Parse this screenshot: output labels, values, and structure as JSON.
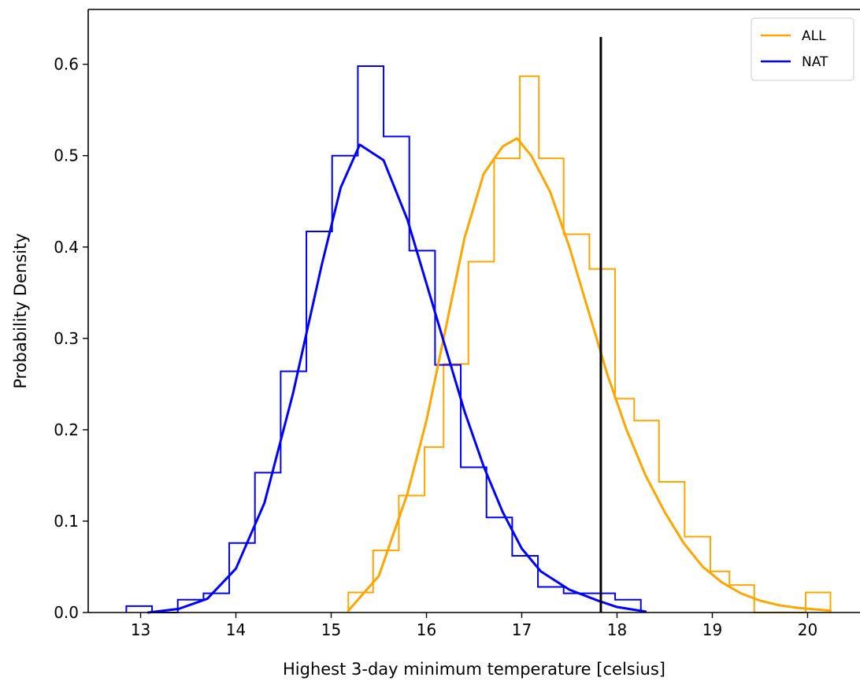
{
  "chart_data": {
    "type": "histogram",
    "title": "",
    "xlabel": "Highest 3-day minimum temperature [celsius]",
    "ylabel": "Probability Density",
    "xlim": [
      12.45,
      20.55
    ],
    "ylim": [
      0,
      0.66
    ],
    "xticks": [
      13,
      14,
      15,
      16,
      17,
      18,
      19,
      20
    ],
    "yticks": [
      0.0,
      0.1,
      0.2,
      0.3,
      0.4,
      0.5,
      0.6
    ],
    "xtick_labels": [
      "13",
      "14",
      "15",
      "16",
      "17",
      "18",
      "19",
      "20"
    ],
    "ytick_labels": [
      "0.0",
      "0.1",
      "0.2",
      "0.3",
      "0.4",
      "0.5",
      "0.6"
    ],
    "grid": false,
    "legend_position": "top-right",
    "vertical_line": {
      "x": 17.83,
      "y_top": 0.63,
      "color": "#000000"
    },
    "series": [
      {
        "name": "ALL",
        "color": "#FFA500",
        "hist_edges": [
          15.18,
          15.44,
          15.71,
          15.98,
          16.18,
          16.44,
          16.71,
          16.98,
          17.18,
          17.44,
          17.71,
          17.98,
          18.18,
          18.44,
          18.71,
          18.98,
          19.18,
          19.44,
          19.71,
          19.98,
          20.24
        ],
        "hist_values": [
          0.022,
          0.068,
          0.128,
          0.181,
          0.272,
          0.384,
          0.497,
          0.587,
          0.497,
          0.414,
          0.376,
          0.234,
          0.21,
          0.143,
          0.083,
          0.045,
          0.03,
          0.0,
          0.0,
          0.022
        ],
        "curve_x": [
          15.18,
          15.5,
          15.8,
          16.0,
          16.2,
          16.4,
          16.6,
          16.8,
          16.95,
          17.1,
          17.3,
          17.5,
          17.7,
          17.9,
          18.1,
          18.3,
          18.5,
          18.7,
          18.9,
          19.1,
          19.3,
          19.5,
          19.7,
          19.9,
          20.24
        ],
        "curve_y": [
          0.002,
          0.04,
          0.13,
          0.21,
          0.31,
          0.41,
          0.48,
          0.51,
          0.519,
          0.5,
          0.46,
          0.4,
          0.33,
          0.26,
          0.2,
          0.15,
          0.11,
          0.076,
          0.05,
          0.033,
          0.021,
          0.013,
          0.008,
          0.005,
          0.002
        ]
      },
      {
        "name": "NAT",
        "color": "#0000FF",
        "hist_edges": [
          12.85,
          13.12,
          13.39,
          13.66,
          13.93,
          14.2,
          14.47,
          14.74,
          15.01,
          15.28,
          15.55,
          15.82,
          16.09,
          16.36,
          16.63,
          16.9,
          17.17,
          17.44,
          17.71,
          17.98,
          18.25
        ],
        "hist_values": [
          0.007,
          0.0,
          0.014,
          0.021,
          0.076,
          0.153,
          0.264,
          0.417,
          0.5,
          0.598,
          0.521,
          0.396,
          0.271,
          0.159,
          0.104,
          0.062,
          0.028,
          0.021,
          0.021,
          0.014
        ],
        "curve_x": [
          13.08,
          13.4,
          13.7,
          14.0,
          14.3,
          14.6,
          14.9,
          15.1,
          15.3,
          15.55,
          15.8,
          16.0,
          16.2,
          16.4,
          16.6,
          16.8,
          17.0,
          17.2,
          17.5,
          17.8,
          18.0,
          18.3
        ],
        "curve_y": [
          0.0,
          0.004,
          0.015,
          0.048,
          0.12,
          0.24,
          0.38,
          0.465,
          0.512,
          0.495,
          0.43,
          0.36,
          0.29,
          0.22,
          0.16,
          0.11,
          0.07,
          0.045,
          0.025,
          0.013,
          0.006,
          0.001
        ]
      }
    ]
  }
}
